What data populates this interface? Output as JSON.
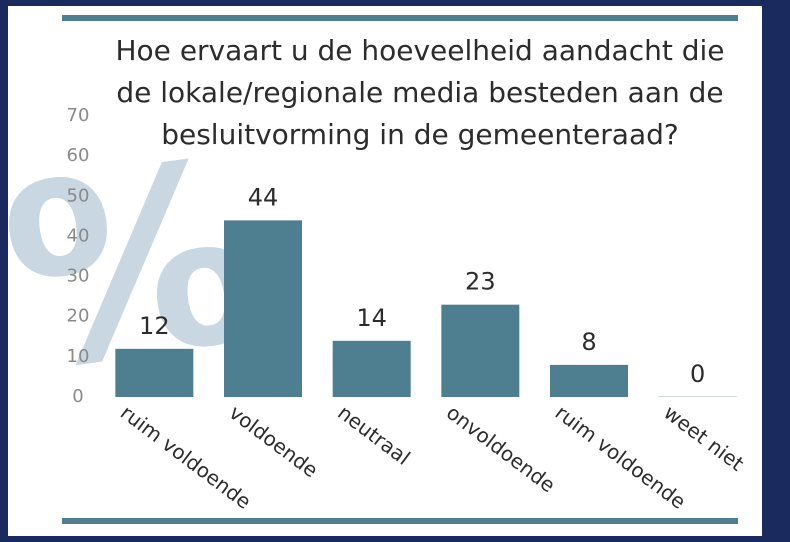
{
  "chart_data": {
    "type": "bar",
    "title": "Hoe ervaart u de hoeveelheid aandacht die de lokale/regionale media besteden aan de besluitvorming in de gemeenteraad?",
    "categories": [
      "ruim voldoende",
      "voldoende",
      "neutraal",
      "onvoldoende",
      "ruim voldoende",
      "weet niet"
    ],
    "values": [
      12,
      44,
      14,
      23,
      8,
      0
    ],
    "color": "#4e7f91",
    "ylim": [
      0,
      70
    ],
    "yticks": [
      0,
      10,
      20,
      30,
      40,
      50,
      60,
      70
    ],
    "grid": false
  }
}
